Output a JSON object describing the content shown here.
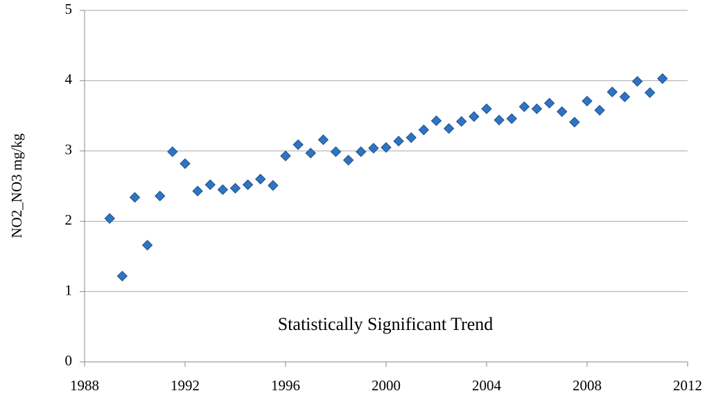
{
  "chart_data": {
    "type": "scatter",
    "ylabel": "NO2_NO3 mg/kg",
    "annotation": "Statistically Significant Trend",
    "x": [
      1989,
      1989.5,
      1990,
      1990.5,
      1991,
      1991.5,
      1992,
      1992.5,
      1993,
      1993.5,
      1994,
      1994.5,
      1995,
      1995.5,
      1996,
      1996.5,
      1997,
      1997.5,
      1998,
      1998.5,
      1999,
      1999.5,
      2000,
      2000.5,
      2001,
      2001.5,
      2002,
      2002.5,
      2003,
      2003.5,
      2004,
      2004.5,
      2005,
      2005.5,
      2006,
      2006.5,
      2007,
      2007.5,
      2008,
      2008.5,
      2009,
      2009.5,
      2010,
      2010.5,
      2011
    ],
    "values": [
      2.04,
      1.22,
      2.34,
      1.66,
      2.36,
      2.99,
      2.82,
      2.43,
      2.52,
      2.45,
      2.47,
      2.52,
      2.6,
      2.51,
      2.93,
      3.09,
      2.97,
      3.16,
      2.99,
      2.87,
      2.99,
      3.04,
      3.05,
      3.14,
      3.19,
      3.3,
      3.43,
      3.32,
      3.42,
      3.49,
      3.6,
      3.44,
      3.46,
      3.63,
      3.6,
      3.68,
      3.56,
      3.41,
      3.71,
      3.58,
      3.84,
      3.77,
      3.99,
      3.83,
      4.03
    ],
    "color": "#2f74c3",
    "xlim": [
      1988,
      2012
    ],
    "xticks": [
      1988,
      1992,
      1996,
      2000,
      2004,
      2008,
      2012
    ],
    "ylim": [
      0,
      5
    ],
    "yticks": [
      0,
      1,
      2,
      3,
      4,
      5
    ],
    "grid": true
  }
}
